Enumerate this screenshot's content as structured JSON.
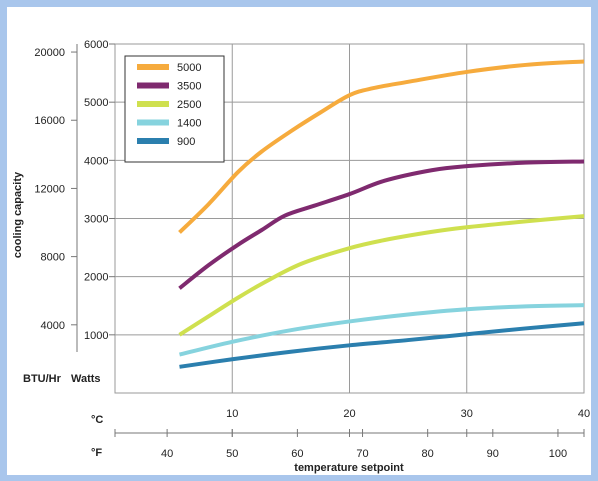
{
  "chart_data": {
    "type": "line",
    "ylabel": "cooling capacity",
    "xlabel": "temperature setpoint",
    "y_units": {
      "btu": "BTU/Hr",
      "watts": "Watts"
    },
    "x_units": {
      "celsius": "°C",
      "fahrenheit": "°F"
    },
    "watts_ticks": [
      1000,
      2000,
      3000,
      4000,
      5000,
      6000
    ],
    "btu_ticks": [
      4000,
      8000,
      12000,
      16000,
      20000
    ],
    "celsius_ticks": [
      10,
      20,
      30,
      40
    ],
    "fahrenheit_ticks": [
      40,
      50,
      60,
      70,
      80,
      90,
      100
    ],
    "xlim_celsius": [
      0,
      40
    ],
    "ylim_watts": [
      0,
      6000
    ],
    "grid": true,
    "legend_position": "top-left",
    "series": [
      {
        "name": "5000",
        "color": "#f6ab3d",
        "points": [
          [
            5.5,
            2760
          ],
          [
            8,
            3250
          ],
          [
            10.5,
            3800
          ],
          [
            12.5,
            4150
          ],
          [
            15,
            4500
          ],
          [
            17.5,
            4820
          ],
          [
            20,
            5120
          ],
          [
            22,
            5240
          ],
          [
            25,
            5350
          ],
          [
            30,
            5520
          ],
          [
            35,
            5640
          ],
          [
            40,
            5700
          ]
        ]
      },
      {
        "name": "3500",
        "color": "#7f2a6f",
        "points": [
          [
            5.5,
            1800
          ],
          [
            8,
            2200
          ],
          [
            10.5,
            2550
          ],
          [
            12.5,
            2800
          ],
          [
            14.5,
            3050
          ],
          [
            17,
            3220
          ],
          [
            20,
            3420
          ],
          [
            23,
            3650
          ],
          [
            27,
            3830
          ],
          [
            30,
            3900
          ],
          [
            35,
            3960
          ],
          [
            40,
            3980
          ]
        ]
      },
      {
        "name": "2500",
        "color": "#cfe04f",
        "points": [
          [
            5.5,
            1000
          ],
          [
            8,
            1320
          ],
          [
            10.5,
            1640
          ],
          [
            13,
            1930
          ],
          [
            16,
            2230
          ],
          [
            20,
            2490
          ],
          [
            23,
            2630
          ],
          [
            27,
            2770
          ],
          [
            30,
            2850
          ],
          [
            35,
            2950
          ],
          [
            40,
            3040
          ]
        ]
      },
      {
        "name": "1400",
        "color": "#86d3de",
        "points": [
          [
            5.5,
            660
          ],
          [
            10,
            880
          ],
          [
            15,
            1080
          ],
          [
            20,
            1230
          ],
          [
            25,
            1350
          ],
          [
            30,
            1440
          ],
          [
            35,
            1490
          ],
          [
            40,
            1510
          ]
        ]
      },
      {
        "name": "900",
        "color": "#2b7fae",
        "points": [
          [
            5.5,
            450
          ],
          [
            10,
            580
          ],
          [
            15,
            710
          ],
          [
            20,
            820
          ],
          [
            25,
            910
          ],
          [
            30,
            1010
          ],
          [
            35,
            1110
          ],
          [
            40,
            1200
          ]
        ]
      }
    ]
  }
}
